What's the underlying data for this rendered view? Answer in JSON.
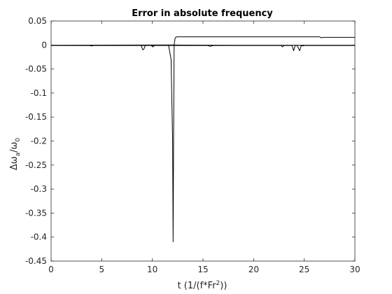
{
  "chart_data": {
    "type": "line",
    "title": "Error in absolute frequency",
    "xlabel_main": "t (1/(f*Fr",
    "xlabel_sup": "2",
    "xlabel_tail": "))",
    "ylabel_main": "Δω",
    "ylabel_sub": "a",
    "ylabel_mid": "/ω",
    "ylabel_sub2": "0",
    "xlim": [
      0,
      30
    ],
    "ylim": [
      -0.45,
      0.05
    ],
    "xticks": [
      0,
      5,
      10,
      15,
      20,
      25,
      30
    ],
    "xtick_labels": [
      "0",
      "5",
      "10",
      "15",
      "20",
      "25",
      "30"
    ],
    "yticks": [
      0.05,
      0,
      -0.05,
      -0.1,
      -0.15,
      -0.2,
      -0.25,
      -0.3,
      -0.35,
      -0.4,
      -0.45
    ],
    "ytick_labels": [
      "0.05",
      "0",
      "-0.05",
      "-0.1",
      "-0.15",
      "-0.2",
      "-0.25",
      "-0.3",
      "-0.35",
      "-0.4",
      "-0.45"
    ],
    "grid": false,
    "line_color": "#000000",
    "series": [
      {
        "x": [
          0,
          3.8,
          4.0,
          4.2,
          8.9,
          9.05,
          9.15,
          9.3,
          9.9,
          10.05,
          10.2,
          11.6,
          11.85,
          12.0,
          12.05,
          12.1,
          12.15,
          12.25,
          12.4,
          15,
          20,
          26.5,
          26.7,
          26.9,
          30
        ],
        "y": [
          -0.001,
          -0.001,
          -0.002,
          -0.001,
          -0.001,
          -0.01,
          -0.009,
          -0.001,
          -0.001,
          -0.004,
          -0.001,
          -0.001,
          -0.03,
          -0.2,
          -0.41,
          -0.18,
          0.0,
          0.015,
          0.017,
          0.017,
          0.017,
          0.017,
          0.015,
          0.016,
          0.016
        ]
      },
      {
        "x": [
          0,
          12.2,
          15.5,
          15.7,
          16,
          22.7,
          22.85,
          23.0,
          23.8,
          23.95,
          24.1,
          24.3,
          24.55,
          24.7,
          24.85,
          25.0,
          30
        ],
        "y": [
          -0.001,
          -0.001,
          -0.001,
          -0.003,
          -0.001,
          -0.001,
          -0.004,
          -0.001,
          -0.001,
          -0.012,
          -0.001,
          -0.001,
          -0.012,
          -0.001,
          -0.002,
          -0.001,
          -0.001
        ]
      },
      {
        "x": [
          0,
          12.2,
          18,
          25,
          30
        ],
        "y": [
          -0.0005,
          0.0,
          -0.0005,
          -0.0005,
          -0.0005
        ]
      }
    ]
  }
}
